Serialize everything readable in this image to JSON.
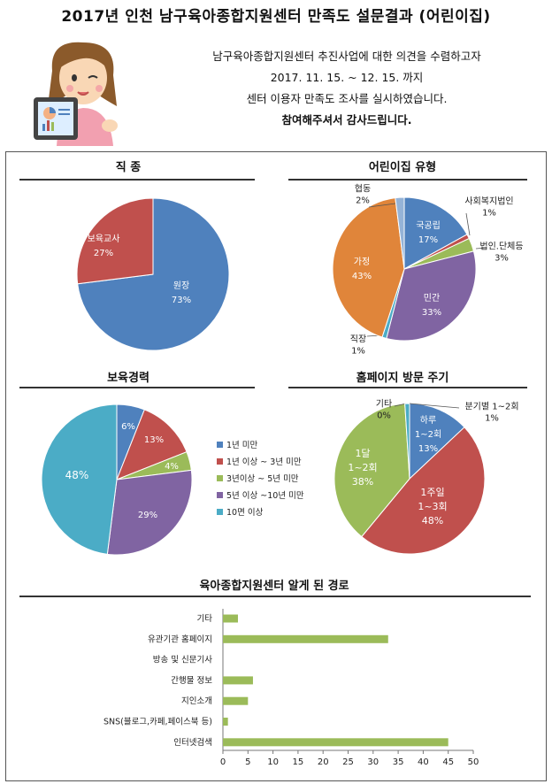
{
  "header": {
    "title": "2017년 인천 남구육아종합지원센터 만족도 설문결과 (어린이집)",
    "intro_lines": [
      "남구육아종합지원센터 추진사업에 대한 의견을 수렴하고자",
      "2017. 11. 15. ~ 12. 15. 까지",
      "센터 이용자 만족도 조사를 실시하였습니다.",
      "참여해주셔서 감사드립니다."
    ]
  },
  "chart_data": [
    {
      "type": "pie",
      "title": "직 종",
      "slices": [
        {
          "label": "원장",
          "value": 73,
          "color": "#4F81BD",
          "text": "원장\n73%"
        },
        {
          "label": "보육교사",
          "value": 27,
          "color": "#C0504D",
          "text": "보육교사\n27%"
        }
      ]
    },
    {
      "type": "pie",
      "title": "어린이집 유형",
      "slices": [
        {
          "label": "국공립",
          "value": 17,
          "color": "#4F81BD",
          "text": "국공립\n17%"
        },
        {
          "label": "사회복지법인",
          "value": 1,
          "color": "#C0504D",
          "text": "사회복지법인\n1%"
        },
        {
          "label": "법인.단체등",
          "value": 3,
          "color": "#9BBB59",
          "text": "법인.단체등\n3%"
        },
        {
          "label": "민간",
          "value": 33,
          "color": "#8064A2",
          "text": "민간\n33%"
        },
        {
          "label": "직장",
          "value": 1,
          "color": "#4BACC6",
          "text": "직장\n1%"
        },
        {
          "label": "가정",
          "value": 43,
          "color": "#E0853A",
          "text": "가정\n43%"
        },
        {
          "label": "협동",
          "value": 2,
          "color": "#95B3D7",
          "text": "협동\n2%"
        }
      ]
    },
    {
      "type": "pie",
      "title": "보육경력",
      "slices": [
        {
          "label": "1년 미만",
          "value": 6,
          "color": "#4F81BD",
          "text": "6%"
        },
        {
          "label": "1년 이상 ~ 3년 미만",
          "value": 13,
          "color": "#C0504D",
          "text": "13%"
        },
        {
          "label": "3년이상 ~ 5년 미만",
          "value": 4,
          "color": "#9BBB59",
          "text": "4%"
        },
        {
          "label": "5년 이상 ~10년 미만",
          "value": 29,
          "color": "#8064A2",
          "text": "29%"
        },
        {
          "label": "10면 이상",
          "value": 48,
          "color": "#4BACC6",
          "text": "48%"
        }
      ],
      "legend": "right"
    },
    {
      "type": "pie",
      "title": "홈페이지 방문 주기",
      "slices": [
        {
          "label": "하루",
          "value": 13,
          "color": "#4F81BD",
          "text": "하루\n1~2회\n13%"
        },
        {
          "label": "1주일",
          "value": 48,
          "color": "#C0504D",
          "text": "1주일\n1~3회\n48%"
        },
        {
          "label": "1달",
          "value": 38,
          "color": "#9BBB59",
          "text": "1달\n1~2회\n38%"
        },
        {
          "label": "기타",
          "value": 0,
          "color": "#8064A2",
          "text": "기타\n0%"
        },
        {
          "label": "분기별 1~2회",
          "value": 1,
          "color": "#4BACC6",
          "text": "분기별 1~2회\n1%"
        }
      ]
    },
    {
      "type": "bar",
      "orientation": "horizontal",
      "title": "육아종합지원센터 알게 된 경로",
      "categories": [
        "기타",
        "유관기관 홈페이지",
        "방송 및 신문기사",
        "간행물 정보",
        "지인소개",
        "SNS(블로그,카페,페이스북 등)",
        "인터넷검색"
      ],
      "values": [
        3,
        33,
        0,
        6,
        5,
        1,
        45
      ],
      "xlim": [
        0,
        50
      ],
      "xticks": [
        0,
        5,
        10,
        15,
        20,
        25,
        30,
        35,
        40,
        45,
        50
      ],
      "bar_color": "#9BBB59"
    }
  ]
}
